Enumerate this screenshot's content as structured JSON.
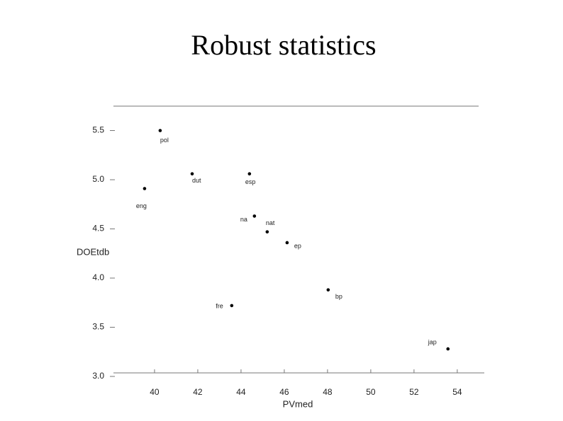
{
  "chart_data": {
    "type": "scatter",
    "title": "Robust statistics",
    "x_label": "PVmed",
    "y_label": "DOEtdb",
    "labels": [
      "pol",
      "dut",
      "esp",
      "eng",
      "na",
      "nat",
      "ep",
      "bp",
      "fre",
      "jap"
    ],
    "x": [
      40.26,
      41.74,
      44.39,
      39.54,
      44.62,
      45.21,
      46.13,
      48.03,
      43.57,
      53.57
    ],
    "values": [
      5.5,
      5.06,
      5.06,
      4.91,
      4.63,
      4.47,
      4.36,
      3.88,
      3.72,
      3.28
    ],
    "color": "#000000",
    "xlim": [
      38.1,
      55.25
    ],
    "xticks": [
      40,
      42,
      44,
      46,
      48,
      50,
      52,
      54
    ],
    "ylim": [
      3,
      5.75
    ],
    "yticks": [
      {
        "value": 3,
        "label": "3.0"
      },
      3.5,
      {
        "value": 4,
        "label": "4.0"
      },
      4.5,
      {
        "value": 5,
        "label": "5.0"
      },
      5.5
    ]
  }
}
